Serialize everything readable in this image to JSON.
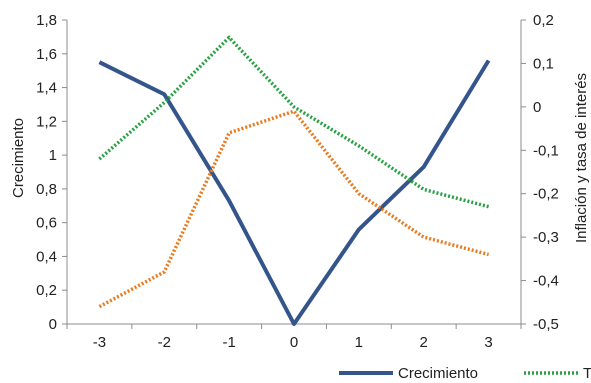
{
  "chart_data": {
    "type": "line",
    "x": [
      -3,
      -2,
      -1,
      0,
      1,
      2,
      3
    ],
    "x_tick_labels": [
      "-3",
      "-2",
      "-1",
      "0",
      "1",
      "2",
      "3"
    ],
    "ylabel_left": "Crecimiento",
    "ylabel_right": "Inflación y tasa de interés",
    "ylim_left": [
      0,
      1.8
    ],
    "ylim_right": [
      -0.5,
      0.2
    ],
    "y_left_tick_labels": [
      "0",
      "0,2",
      "0,4",
      "0,6",
      "0,8",
      "1",
      "1,2",
      "1,4",
      "1,6",
      "1,8"
    ],
    "y_right_tick_labels": [
      "-0,5",
      "-0,4",
      "-0,3",
      "-0,2",
      "-0,1",
      "0",
      "0,1",
      "0,2"
    ],
    "grid": false,
    "legend_position": "bottom",
    "series": [
      {
        "name": "Crecimiento",
        "axis": "left",
        "style": "solid",
        "color": "#34558b",
        "values": [
          1.55,
          1.36,
          0.73,
          0.0,
          0.56,
          0.93,
          1.56
        ]
      },
      {
        "name": "T",
        "axis": "right",
        "style": "dotted",
        "color": "#27a243",
        "values": [
          -0.12,
          0.01,
          0.16,
          0.0,
          -0.09,
          -0.19,
          -0.23
        ]
      },
      {
        "axis": "right",
        "style": "dotted",
        "color": "#ea7a1e",
        "values": [
          -0.46,
          -0.38,
          -0.06,
          -0.01,
          -0.2,
          -0.3,
          -0.34
        ]
      }
    ]
  }
}
